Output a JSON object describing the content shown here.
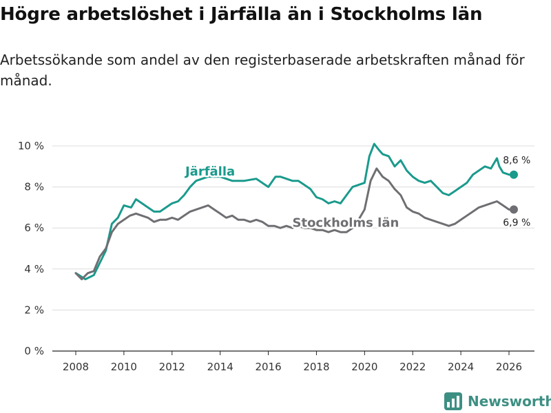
{
  "brand": {
    "name": "Newsworthy",
    "color": "#3d8f83"
  },
  "chart_data": {
    "type": "line",
    "title": "Högre arbetslöshet i Järfälla än i Stockholms län",
    "subtitle": "Arbetssökande som andel av den registerbaserade arbetskraften månad för månad.",
    "xlabel": "",
    "ylabel": "",
    "ylim": [
      0,
      10
    ],
    "xlim": [
      2008,
      2026.2
    ],
    "y_ticks": [
      {
        "value": 0,
        "label": "0 %"
      },
      {
        "value": 2,
        "label": "2 %"
      },
      {
        "value": 4,
        "label": "4 %"
      },
      {
        "value": 6,
        "label": "6 %"
      },
      {
        "value": 8,
        "label": "8 %"
      },
      {
        "value": 10,
        "label": "10 %"
      }
    ],
    "x_ticks": [
      {
        "value": 2008,
        "label": "2008"
      },
      {
        "value": 2010,
        "label": "2010"
      },
      {
        "value": 2012,
        "label": "2012"
      },
      {
        "value": 2014,
        "label": "2014"
      },
      {
        "value": 2016,
        "label": "2016"
      },
      {
        "value": 2018,
        "label": "2018"
      },
      {
        "value": 2020,
        "label": "2020"
      },
      {
        "value": 2022,
        "label": "2022"
      },
      {
        "value": 2024,
        "label": "2024"
      },
      {
        "value": 2026,
        "label": "2026"
      }
    ],
    "grid": true,
    "series": [
      {
        "name": "Järfälla",
        "color": "#1a9a8c",
        "end_label": "8,6 %",
        "x": [
          2008.0,
          2008.4,
          2008.75,
          2009.0,
          2009.25,
          2009.5,
          2009.75,
          2010.0,
          2010.3,
          2010.5,
          2010.75,
          2011.0,
          2011.25,
          2011.5,
          2011.75,
          2012.0,
          2012.25,
          2012.5,
          2012.75,
          2013.0,
          2013.5,
          2014.0,
          2014.5,
          2015.0,
          2015.5,
          2016.0,
          2016.3,
          2016.5,
          2016.75,
          2017.0,
          2017.25,
          2017.5,
          2017.75,
          2018.0,
          2018.25,
          2018.5,
          2018.75,
          2019.0,
          2019.25,
          2019.5,
          2019.75,
          2020.0,
          2020.2,
          2020.4,
          2020.6,
          2020.75,
          2021.0,
          2021.25,
          2021.5,
          2021.75,
          2022.0,
          2022.25,
          2022.5,
          2022.75,
          2023.0,
          2023.25,
          2023.5,
          2023.75,
          2024.0,
          2024.25,
          2024.5,
          2024.75,
          2025.0,
          2025.25,
          2025.5,
          2025.6,
          2025.75,
          2026.0,
          2026.2
        ],
        "values": [
          3.8,
          3.5,
          3.7,
          4.3,
          4.9,
          6.2,
          6.5,
          7.1,
          7.0,
          7.4,
          7.2,
          7.0,
          6.8,
          6.8,
          7.0,
          7.2,
          7.3,
          7.6,
          8.0,
          8.3,
          8.5,
          8.5,
          8.3,
          8.3,
          8.4,
          8.0,
          8.5,
          8.5,
          8.4,
          8.3,
          8.3,
          8.1,
          7.9,
          7.5,
          7.4,
          7.2,
          7.3,
          7.2,
          7.6,
          8.0,
          8.1,
          8.2,
          9.5,
          10.1,
          9.8,
          9.6,
          9.5,
          9.0,
          9.3,
          8.8,
          8.5,
          8.3,
          8.2,
          8.3,
          8.0,
          7.7,
          7.6,
          7.8,
          8.0,
          8.2,
          8.6,
          8.8,
          9.0,
          8.9,
          9.4,
          9.0,
          8.7,
          8.6,
          8.6
        ]
      },
      {
        "name": "Stockholms län",
        "color": "#6f6f73",
        "end_label": "6,9 %",
        "x": [
          2008.0,
          2008.25,
          2008.5,
          2008.75,
          2009.0,
          2009.25,
          2009.5,
          2009.75,
          2010.0,
          2010.25,
          2010.5,
          2010.75,
          2011.0,
          2011.25,
          2011.5,
          2011.75,
          2012.0,
          2012.25,
          2012.5,
          2012.75,
          2013.0,
          2013.25,
          2013.5,
          2013.75,
          2014.0,
          2014.25,
          2014.5,
          2014.75,
          2015.0,
          2015.25,
          2015.5,
          2015.75,
          2016.0,
          2016.25,
          2016.5,
          2016.75,
          2017.0,
          2017.25,
          2017.5,
          2017.75,
          2018.0,
          2018.25,
          2018.5,
          2018.75,
          2019.0,
          2019.25,
          2019.5,
          2019.75,
          2020.0,
          2020.25,
          2020.5,
          2020.75,
          2021.0,
          2021.25,
          2021.5,
          2021.75,
          2022.0,
          2022.25,
          2022.5,
          2022.75,
          2023.0,
          2023.25,
          2023.5,
          2023.75,
          2024.0,
          2024.25,
          2024.5,
          2024.75,
          2025.0,
          2025.25,
          2025.5,
          2025.75,
          2026.0,
          2026.2
        ],
        "values": [
          3.8,
          3.5,
          3.8,
          3.9,
          4.6,
          5.0,
          5.8,
          6.2,
          6.4,
          6.6,
          6.7,
          6.6,
          6.5,
          6.3,
          6.4,
          6.4,
          6.5,
          6.4,
          6.6,
          6.8,
          6.9,
          7.0,
          7.1,
          6.9,
          6.7,
          6.5,
          6.6,
          6.4,
          6.4,
          6.3,
          6.4,
          6.3,
          6.1,
          6.1,
          6.0,
          6.1,
          6.0,
          6.1,
          6.0,
          6.0,
          5.9,
          5.9,
          5.8,
          5.9,
          5.8,
          5.8,
          6.0,
          6.4,
          6.9,
          8.3,
          8.9,
          8.5,
          8.3,
          7.9,
          7.6,
          7.0,
          6.8,
          6.7,
          6.5,
          6.4,
          6.3,
          6.2,
          6.1,
          6.2,
          6.4,
          6.6,
          6.8,
          7.0,
          7.1,
          7.2,
          7.3,
          7.1,
          6.9,
          6.9
        ]
      }
    ]
  }
}
